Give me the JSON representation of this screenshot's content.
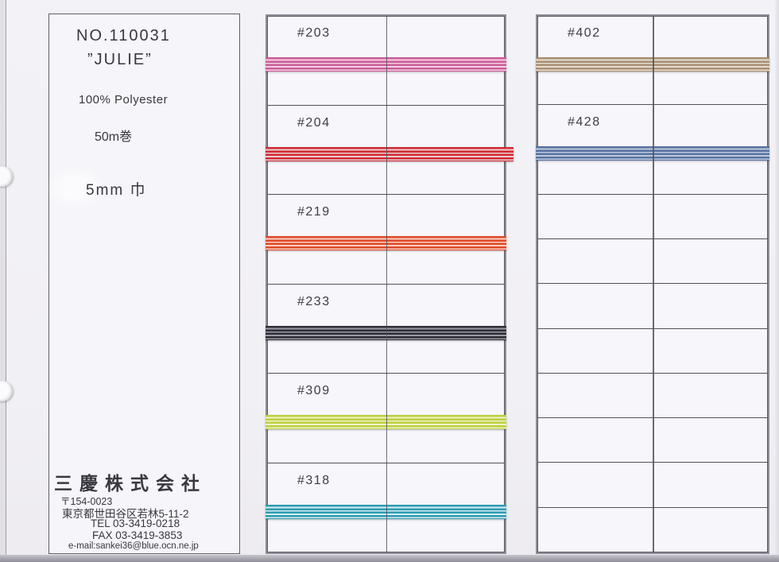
{
  "card": {
    "product_no": "NO.110031",
    "product_name": "”JULIE”",
    "material": "100% Polyester",
    "roll_length": "50m巻",
    "ribbon_width": "5mm 巾",
    "company": {
      "name": "三慶株式会社",
      "postal": "〒154-0023",
      "address": "東京都世田谷区若林5-11-2",
      "tel": "TEL 03-3419-0218",
      "fax": "FAX 03-3419-3853",
      "email": "e-mail:sankei36@blue.ocn.ne.jp"
    }
  },
  "tables": [
    {
      "name": "sample-table-1",
      "rows": [
        {
          "label": "#203",
          "ribbon_dark": "#cb5d99",
          "ribbon_light": "#f3cfe0"
        },
        {
          "label": "#204",
          "ribbon_dark": "#cf2b33",
          "ribbon_light": "#eecdd0",
          "overhang_right": 9
        },
        {
          "label": "#219",
          "ribbon_dark": "#e14a2a",
          "ribbon_light": "#f6d0c0"
        },
        {
          "label": "#233",
          "ribbon_dark": "#2e2e36",
          "ribbon_light": "#9b9ba6"
        },
        {
          "label": "#309",
          "ribbon_dark": "#bdd03e",
          "ribbon_light": "#eff2cb"
        },
        {
          "label": "#318",
          "ribbon_dark": "#2d9db2",
          "ribbon_light": "#d6edf2"
        }
      ],
      "empty_half_rows": 0
    },
    {
      "name": "sample-table-2",
      "rows": [
        {
          "label": "#402",
          "ribbon_dark": "#a78e74",
          "ribbon_light": "#e7decf"
        },
        {
          "label": "#428",
          "ribbon_dark": "#5873a2",
          "ribbon_light": "#bcc8dc"
        }
      ],
      "empty_half_rows": 8
    }
  ],
  "colors": {
    "grid_line": "#52525c",
    "outer_border": "#8f8f99",
    "paper": "#f6f5f9",
    "text": "#38383f"
  }
}
